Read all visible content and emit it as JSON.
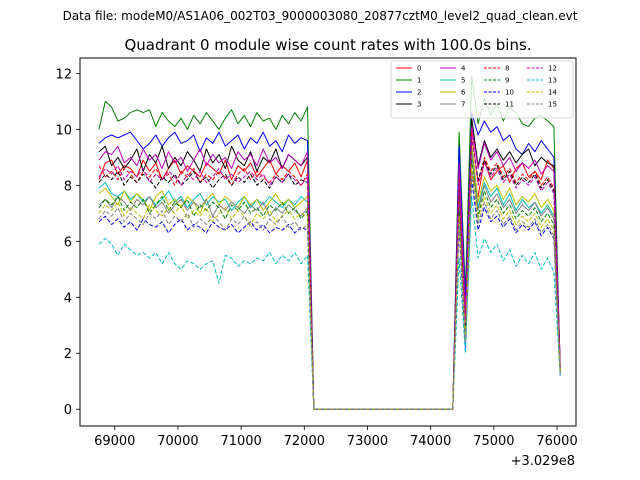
{
  "chart_data": {
    "type": "line",
    "suptitle": "Data file: modeM0/AS1A06_002T03_9000003080_20877cztM0_level2_quad_clean.evt",
    "title": "Quadrant 0 module wise count rates with 100.0s bins.",
    "xlabel": "",
    "ylabel": "",
    "x_offset_label": "+3.029e8",
    "xlim": [
      68450,
      76300
    ],
    "ylim": [
      -0.6,
      12.55
    ],
    "xticks": [
      69000,
      70000,
      71000,
      72000,
      73000,
      74000,
      75000,
      76000
    ],
    "xtick_labels": [
      "69000",
      "70000",
      "71000",
      "72000",
      "73000",
      "74000",
      "75000",
      "76000"
    ],
    "yticks": [
      0,
      2,
      4,
      6,
      8,
      10,
      12
    ],
    "ytick_labels": [
      "0",
      "2",
      "4",
      "6",
      "8",
      "10",
      "12"
    ],
    "x_start": 68750,
    "x_step": 100,
    "legend_position": "top-right",
    "series": [
      {
        "name": "0",
        "color": "#ff0000",
        "dash": "solid",
        "level": 8.6,
        "pre_gap": [
          8.2,
          8.8,
          8.9,
          8.4,
          8.7,
          8.6,
          8.3,
          8.9,
          8.5,
          8.8,
          8.2,
          8.6,
          8.9,
          8.4,
          8.7,
          8.5,
          8.3,
          8.8,
          8.6,
          8.4,
          8.9,
          8.2,
          8.7,
          8.5,
          8.8,
          8.3,
          8.6,
          8.9,
          8.4,
          8.7,
          8.5,
          8.8,
          8.3,
          8.9
        ],
        "post_gap": [
          7.9,
          3.5,
          8.4,
          7.6,
          8.9,
          8.2,
          8.5,
          8.7,
          8.1,
          8.6,
          8.8,
          8.3,
          8.5,
          8.2,
          8.9,
          8.6,
          1.6
        ]
      },
      {
        "name": "1",
        "color": "#008000",
        "dash": "solid",
        "level": 10.4,
        "pre_gap": [
          10.0,
          11.0,
          10.8,
          10.3,
          10.4,
          10.6,
          10.7,
          10.6,
          10.7,
          10.1,
          10.6,
          10.3,
          10.1,
          10.4,
          10.0,
          10.5,
          10.2,
          10.6,
          10.3,
          10.0,
          10.4,
          10.7,
          10.2,
          10.5,
          10.1,
          10.6,
          10.3,
          10.4,
          10.0,
          10.5,
          10.2,
          10.6,
          10.3,
          10.8
        ],
        "post_gap": [
          9.9,
          4.2,
          11.9,
          10.2,
          11.1,
          10.5,
          10.9,
          10.3,
          10.8,
          10.6,
          10.2,
          10.1,
          10.4,
          10.5,
          10.3,
          10.1,
          1.3
        ]
      },
      {
        "name": "2",
        "color": "#0000ff",
        "dash": "solid",
        "level": 9.7,
        "pre_gap": [
          9.5,
          9.7,
          9.8,
          9.7,
          9.8,
          9.9,
          9.6,
          9.3,
          9.5,
          9.8,
          9.4,
          9.7,
          9.9,
          9.5,
          9.6,
          9.8,
          9.2,
          9.7,
          9.5,
          9.9,
          9.4,
          9.6,
          9.8,
          9.3,
          9.7,
          9.5,
          9.9,
          9.4,
          9.6,
          9.2,
          9.8,
          9.5,
          9.7,
          9.6
        ],
        "post_gap": [
          9.4,
          3.8,
          10.6,
          9.8,
          10.3,
          9.9,
          10.1,
          9.6,
          9.8,
          9.3,
          9.1,
          9.5,
          9.2,
          9.6,
          9.3,
          9.0,
          1.5
        ]
      },
      {
        "name": "3",
        "color": "#000000",
        "dash": "solid",
        "level": 8.9,
        "pre_gap": [
          9.2,
          9.4,
          8.7,
          9.0,
          8.6,
          8.9,
          9.3,
          8.5,
          9.1,
          8.8,
          9.4,
          8.6,
          9.0,
          8.7,
          9.2,
          8.9,
          8.5,
          9.3,
          8.8,
          9.1,
          8.6,
          9.4,
          8.9,
          8.7,
          9.2,
          8.5,
          9.0,
          8.8,
          9.3,
          8.6,
          9.1,
          8.9,
          8.7,
          9.0
        ],
        "post_gap": [
          8.6,
          3.2,
          10.4,
          8.7,
          9.6,
          9.0,
          9.3,
          8.9,
          9.2,
          8.8,
          9.1,
          9.3,
          8.7,
          9.0,
          8.8,
          8.7,
          1.4
        ]
      },
      {
        "name": "4",
        "color": "#bf00bf",
        "dash": "solid",
        "level": 9.0,
        "pre_gap": [
          8.9,
          9.2,
          9.1,
          9.4,
          8.8,
          9.0,
          8.7,
          9.3,
          8.9,
          9.1,
          8.6,
          9.2,
          8.8,
          9.0,
          8.5,
          8.9,
          9.3,
          8.7,
          9.1,
          8.8,
          9.0,
          8.6,
          9.2,
          8.9,
          9.1,
          8.7,
          9.3,
          8.8,
          9.0,
          8.6,
          9.1,
          8.9,
          8.7,
          9.2
        ],
        "post_gap": [
          8.8,
          3.4,
          10.1,
          8.6,
          9.5,
          8.9,
          9.2,
          8.7,
          9.0,
          8.5,
          8.8,
          8.6,
          8.9,
          8.4,
          8.7,
          8.5,
          1.5
        ]
      },
      {
        "name": "5",
        "color": "#00bfbf",
        "dash": "solid",
        "level": 7.5,
        "pre_gap": [
          7.9,
          8.1,
          7.7,
          7.6,
          7.8,
          7.5,
          7.7,
          7.4,
          7.6,
          7.3,
          7.5,
          7.8,
          7.4,
          7.6,
          7.2,
          7.5,
          7.7,
          7.3,
          7.6,
          7.4,
          7.5,
          7.1,
          7.4,
          7.6,
          7.2,
          7.5,
          7.3,
          7.6,
          7.4,
          7.2,
          7.5,
          7.3,
          7.6,
          7.4
        ],
        "post_gap": [
          7.6,
          2.5,
          9.3,
          7.2,
          8.1,
          7.6,
          7.9,
          7.3,
          7.7,
          7.1,
          7.5,
          7.2,
          7.4,
          7.0,
          7.3,
          6.9,
          1.3
        ]
      },
      {
        "name": "6",
        "color": "#bfbf00",
        "dash": "solid",
        "level": 7.6,
        "pre_gap": [
          7.7,
          7.9,
          7.6,
          7.3,
          7.8,
          7.4,
          7.7,
          7.5,
          7.1,
          7.6,
          7.8,
          7.3,
          7.5,
          7.2,
          7.6,
          7.4,
          7.0,
          7.5,
          7.7,
          7.3,
          7.6,
          7.4,
          7.2,
          7.6,
          7.3,
          7.5,
          7.1,
          7.4,
          7.7,
          7.3,
          7.5,
          7.2,
          7.4,
          7.6
        ],
        "post_gap": [
          7.5,
          2.8,
          9.5,
          7.4,
          8.3,
          7.8,
          8.0,
          7.5,
          7.9,
          7.3,
          7.6,
          7.4,
          7.7,
          7.2,
          7.5,
          7.1,
          1.4
        ]
      },
      {
        "name": "7",
        "color": "#808080",
        "dash": "solid",
        "level": 7.4,
        "pre_gap": [
          7.3,
          7.5,
          7.2,
          7.6,
          7.4,
          7.1,
          7.5,
          7.3,
          7.6,
          7.2,
          7.4,
          7.0,
          7.3,
          7.5,
          7.1,
          7.4,
          7.2,
          7.5,
          6.9,
          7.3,
          7.1,
          7.4,
          7.2,
          7.0,
          7.3,
          7.1,
          7.4,
          6.9,
          7.2,
          7.0,
          7.3,
          7.1,
          6.9,
          7.2
        ],
        "post_gap": [
          7.3,
          2.6,
          9.1,
          7.1,
          8.0,
          7.4,
          7.7,
          7.2,
          7.5,
          7.0,
          7.3,
          7.1,
          7.4,
          6.9,
          7.2,
          6.8,
          1.3
        ]
      },
      {
        "name": "8",
        "color": "#ff0000",
        "dash": "dashed",
        "level": 8.4,
        "pre_gap": [
          8.7,
          8.3,
          8.5,
          8.2,
          8.6,
          8.4,
          8.1,
          8.5,
          8.3,
          8.6,
          8.2,
          8.4,
          8.0,
          8.5,
          8.3,
          8.6,
          8.1,
          8.4,
          8.2,
          8.5,
          8.3,
          8.0,
          8.4,
          8.6,
          8.2,
          8.5,
          8.3,
          8.1,
          8.4,
          8.2,
          8.5,
          8.3,
          8.0,
          8.4
        ],
        "post_gap": [
          8.2,
          3.1,
          9.9,
          8.1,
          9.0,
          8.5,
          8.8,
          8.3,
          8.6,
          8.1,
          8.4,
          8.2,
          8.5,
          8.0,
          8.3,
          7.9,
          1.5
        ]
      },
      {
        "name": "9",
        "color": "#008000",
        "dash": "dashed",
        "level": 7.4,
        "pre_gap": [
          7.2,
          7.5,
          7.3,
          7.6,
          7.1,
          7.4,
          7.2,
          7.5,
          7.0,
          7.3,
          7.6,
          7.1,
          7.4,
          7.2,
          7.5,
          6.9,
          7.3,
          7.1,
          7.4,
          7.2,
          6.8,
          7.3,
          7.1,
          7.4,
          7.0,
          7.2,
          6.9,
          7.3,
          7.1,
          7.4,
          7.0,
          7.2,
          6.8,
          7.1
        ],
        "post_gap": [
          7.1,
          2.4,
          8.9,
          6.9,
          7.8,
          7.2,
          7.5,
          7.0,
          7.3,
          6.8,
          7.1,
          6.9,
          7.2,
          6.7,
          7.0,
          6.6,
          1.3
        ]
      },
      {
        "name": "10",
        "color": "#0000ff",
        "dash": "dashed",
        "level": 6.7,
        "pre_gap": [
          6.7,
          6.9,
          6.6,
          6.8,
          6.5,
          6.7,
          6.4,
          6.8,
          6.6,
          6.5,
          6.7,
          6.3,
          6.6,
          6.8,
          6.4,
          6.6,
          6.5,
          6.3,
          6.7,
          6.5,
          6.4,
          6.6,
          6.3,
          6.5,
          6.7,
          6.4,
          6.6,
          6.3,
          6.5,
          6.4,
          6.6,
          6.3,
          6.5,
          6.4
        ],
        "post_gap": [
          6.5,
          2.2,
          8.2,
          6.4,
          7.2,
          6.7,
          6.9,
          6.5,
          6.8,
          6.3,
          6.6,
          6.4,
          6.7,
          6.2,
          6.5,
          6.1,
          1.2
        ]
      },
      {
        "name": "11",
        "color": "#000000",
        "dash": "dashed",
        "level": 8.3,
        "pre_gap": [
          8.1,
          8.4,
          8.2,
          8.5,
          8.0,
          8.3,
          8.1,
          8.4,
          8.2,
          7.9,
          8.3,
          8.1,
          8.4,
          8.0,
          8.2,
          8.5,
          8.1,
          8.3,
          7.9,
          8.2,
          8.4,
          8.0,
          8.3,
          8.1,
          8.4,
          8.0,
          8.2,
          7.9,
          8.3,
          8.1,
          8.4,
          8.0,
          8.2,
          8.1
        ],
        "post_gap": [
          8.0,
          3.0,
          9.7,
          8.2,
          8.9,
          8.4,
          8.7,
          8.2,
          8.5,
          8.0,
          8.3,
          8.1,
          8.4,
          7.9,
          8.2,
          7.8,
          1.4
        ]
      },
      {
        "name": "12",
        "color": "#bf00bf",
        "dash": "dashed",
        "level": 8.5,
        "pre_gap": [
          8.3,
          8.6,
          8.4,
          8.7,
          8.2,
          8.5,
          8.3,
          8.6,
          8.1,
          8.4,
          8.2,
          8.5,
          8.3,
          8.0,
          8.4,
          8.2,
          8.5,
          8.1,
          8.3,
          8.6,
          8.2,
          8.4,
          8.1,
          8.3,
          8.5,
          8.2,
          8.4,
          8.0,
          8.3,
          8.1,
          8.4,
          8.2,
          8.0,
          8.3
        ],
        "post_gap": [
          8.1,
          3.1,
          9.8,
          8.0,
          8.8,
          8.3,
          8.6,
          8.1,
          8.4,
          7.9,
          8.2,
          8.0,
          8.3,
          7.8,
          8.1,
          7.7,
          1.4
        ]
      },
      {
        "name": "13",
        "color": "#00bfbf",
        "dash": "dashed",
        "level": 5.6,
        "pre_gap": [
          5.9,
          6.1,
          5.9,
          5.5,
          5.9,
          5.7,
          5.5,
          5.6,
          5.4,
          5.6,
          5.2,
          5.6,
          5.2,
          5.0,
          5.3,
          5.2,
          5.0,
          5.2,
          5.3,
          4.5,
          5.5,
          5.4,
          5.1,
          5.3,
          5.2,
          5.4,
          5.3,
          5.6,
          5.2,
          5.5,
          5.3,
          5.6,
          5.2,
          5.5
        ],
        "post_gap": [
          5.4,
          2.0,
          7.6,
          5.4,
          6.1,
          5.6,
          5.9,
          5.3,
          5.7,
          5.1,
          5.5,
          5.2,
          5.6,
          5.0,
          5.4,
          4.9,
          1.2
        ]
      },
      {
        "name": "14",
        "color": "#bfbf00",
        "dash": "dashed",
        "level": 7.2,
        "pre_gap": [
          7.0,
          7.3,
          7.1,
          7.4,
          6.9,
          7.2,
          7.0,
          6.8,
          7.3,
          7.1,
          6.9,
          7.2,
          7.0,
          7.3,
          6.8,
          7.1,
          6.9,
          7.2,
          6.7,
          7.0,
          7.2,
          6.8,
          7.1,
          6.9,
          6.6,
          7.0,
          6.8,
          7.1,
          6.7,
          6.9,
          7.1,
          6.8,
          7.0,
          6.9
        ],
        "post_gap": [
          6.9,
          2.5,
          8.7,
          6.8,
          7.6,
          7.0,
          7.3,
          6.8,
          7.1,
          6.6,
          6.9,
          6.7,
          7.0,
          6.5,
          6.8,
          6.4,
          1.3
        ]
      },
      {
        "name": "15",
        "color": "#808080",
        "dash": "dashed",
        "level": 7.0,
        "pre_gap": [
          6.8,
          7.1,
          6.9,
          7.2,
          6.7,
          7.0,
          6.8,
          6.6,
          7.0,
          6.8,
          7.1,
          6.6,
          6.9,
          6.7,
          7.0,
          6.5,
          6.8,
          6.6,
          6.9,
          6.7,
          6.4,
          6.8,
          6.6,
          6.9,
          6.5,
          6.7,
          6.4,
          6.8,
          6.6,
          6.9,
          6.5,
          6.7,
          6.4,
          6.6
        ],
        "post_gap": [
          6.7,
          2.4,
          8.5,
          6.6,
          7.4,
          6.8,
          7.1,
          6.6,
          6.9,
          6.4,
          6.7,
          6.5,
          6.8,
          6.3,
          6.6,
          6.2,
          1.2
        ]
      }
    ]
  }
}
